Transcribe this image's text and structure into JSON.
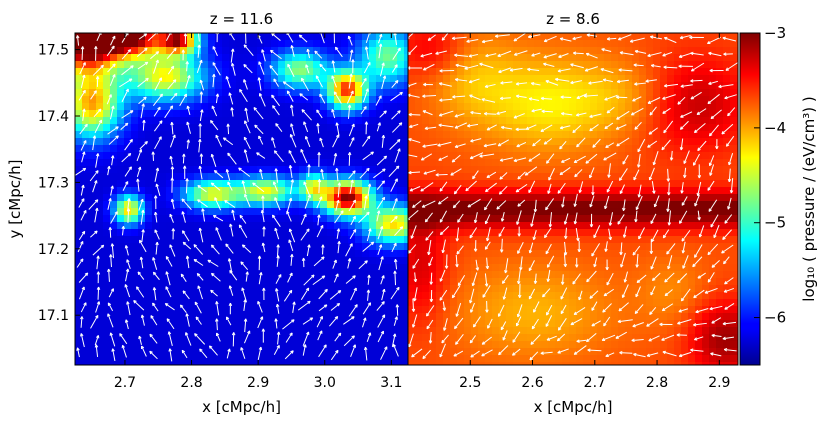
{
  "chart_data": [
    {
      "type": "heatmap",
      "title": "z = 11.6",
      "xlabel": "x [cMpc/h]",
      "ylabel": "y [cMpc/h]",
      "xlim": [
        2.625,
        3.125
      ],
      "ylim": [
        17.025,
        17.525
      ],
      "xticks": [
        2.7,
        2.8,
        2.9,
        3.0,
        3.1
      ],
      "xtick_labels": [
        "2.7",
        "2.8",
        "2.9",
        "3.0",
        "3.1"
      ],
      "yticks": [
        17.1,
        17.2,
        17.3,
        17.4,
        17.5
      ],
      "ytick_labels": [
        "17.1",
        "17.2",
        "17.3",
        "17.4",
        "17.5"
      ],
      "background_value": -6.2,
      "features": [
        {
          "kind": "blob",
          "x": 2.64,
          "y": 17.51,
          "sx": 0.04,
          "sy": 0.03,
          "amp": 3.5
        },
        {
          "kind": "blob",
          "x": 2.71,
          "y": 17.52,
          "sx": 0.035,
          "sy": 0.02,
          "amp": 3.0
        },
        {
          "kind": "blob",
          "x": 2.78,
          "y": 17.515,
          "sx": 0.02,
          "sy": 0.015,
          "amp": 2.7
        },
        {
          "kind": "blob",
          "x": 2.65,
          "y": 17.42,
          "sx": 0.03,
          "sy": 0.035,
          "amp": 2.2
        },
        {
          "kind": "blob",
          "x": 2.76,
          "y": 17.46,
          "sx": 0.04,
          "sy": 0.025,
          "amp": 1.9
        },
        {
          "kind": "blob",
          "x": 2.705,
          "y": 17.262,
          "sx": 0.015,
          "sy": 0.015,
          "amp": 2.0
        },
        {
          "kind": "blob",
          "x": 2.83,
          "y": 17.285,
          "sx": 0.03,
          "sy": 0.015,
          "amp": 1.8
        },
        {
          "kind": "blob",
          "x": 2.91,
          "y": 17.29,
          "sx": 0.03,
          "sy": 0.015,
          "amp": 1.8
        },
        {
          "kind": "blob",
          "x": 2.98,
          "y": 17.295,
          "sx": 0.015,
          "sy": 0.015,
          "amp": 1.6
        },
        {
          "kind": "blob",
          "x": 3.03,
          "y": 17.28,
          "sx": 0.025,
          "sy": 0.018,
          "amp": 3.2
        },
        {
          "kind": "blob",
          "x": 3.1,
          "y": 17.24,
          "sx": 0.03,
          "sy": 0.02,
          "amp": 2.0
        },
        {
          "kind": "blob",
          "x": 3.03,
          "y": 17.44,
          "sx": 0.02,
          "sy": 0.02,
          "amp": 2.6
        },
        {
          "kind": "blob",
          "x": 2.96,
          "y": 17.47,
          "sx": 0.03,
          "sy": 0.02,
          "amp": 1.5
        },
        {
          "kind": "blob",
          "x": 3.09,
          "y": 17.49,
          "sx": 0.03,
          "sy": 0.03,
          "amp": 1.4
        }
      ]
    },
    {
      "type": "heatmap",
      "title": "z = 8.6",
      "xlabel": "x [cMpc/h]",
      "ylabel": "",
      "xlim": [
        2.4,
        2.93
      ],
      "ylim": [
        17.025,
        17.525
      ],
      "xticks": [
        2.5,
        2.6,
        2.7,
        2.8,
        2.9
      ],
      "xtick_labels": [
        "2.5",
        "2.6",
        "2.7",
        "2.8",
        "2.9"
      ],
      "background_value": -3.7,
      "features": [
        {
          "kind": "blob",
          "x": 2.62,
          "y": 17.42,
          "sx": 0.07,
          "sy": 0.05,
          "amp": -0.55
        },
        {
          "kind": "blob",
          "x": 2.5,
          "y": 17.46,
          "sx": 0.05,
          "sy": 0.05,
          "amp": -0.35
        },
        {
          "kind": "blob",
          "x": 2.75,
          "y": 17.43,
          "sx": 0.06,
          "sy": 0.04,
          "amp": -0.3
        },
        {
          "kind": "blob",
          "x": 2.6,
          "y": 17.11,
          "sx": 0.09,
          "sy": 0.05,
          "amp": -0.35
        },
        {
          "kind": "blob",
          "x": 2.82,
          "y": 17.14,
          "sx": 0.04,
          "sy": 0.04,
          "amp": -0.2
        },
        {
          "kind": "band",
          "y": 17.262,
          "sy": 0.02,
          "amp": 0.75
        },
        {
          "kind": "blob",
          "x": 2.85,
          "y": 17.42,
          "sx": 0.06,
          "sy": 0.05,
          "amp": 0.5
        },
        {
          "kind": "blob",
          "x": 2.44,
          "y": 17.5,
          "sx": 0.04,
          "sy": 0.03,
          "amp": 0.35
        },
        {
          "kind": "blob",
          "x": 2.9,
          "y": 17.07,
          "sx": 0.04,
          "sy": 0.04,
          "amp": 0.6
        },
        {
          "kind": "blob",
          "x": 2.42,
          "y": 17.18,
          "sx": 0.03,
          "sy": 0.06,
          "amp": 0.4
        }
      ]
    }
  ],
  "colorbar": {
    "label": "log₁₀ ( pressure / (eV/cm³) )",
    "range": [
      -6.5,
      -3
    ],
    "ticks": [
      -6,
      -5,
      -4,
      -3
    ],
    "tick_labels": [
      "−6",
      "−5",
      "−4",
      "−3"
    ]
  },
  "colors": {
    "arrow": "#ffffff",
    "axis": "#000000"
  }
}
